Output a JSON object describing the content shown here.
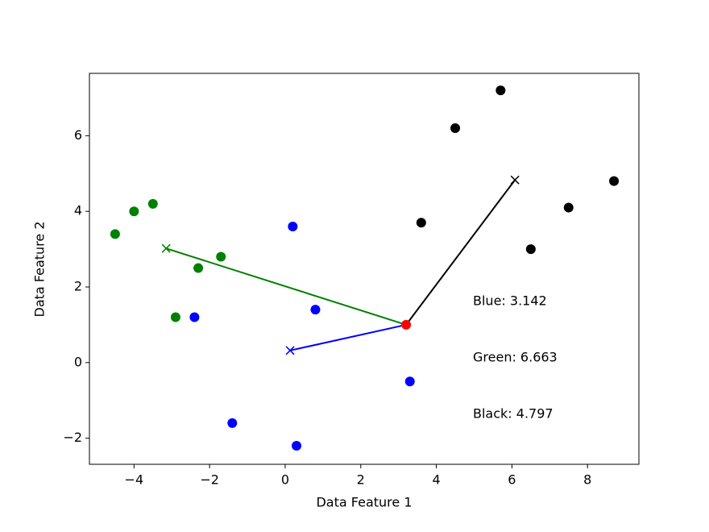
{
  "chart_data": {
    "type": "scatter",
    "xlabel": "Data Feature 1",
    "ylabel": "Data Feature 2",
    "xlim": [
      -5.18,
      9.36
    ],
    "ylim": [
      -2.69,
      7.65
    ],
    "xticks": [
      {
        "value": -4,
        "label": "−4"
      },
      {
        "value": -2,
        "label": "−2"
      },
      0,
      2,
      4,
      6,
      8
    ],
    "yticks": [
      {
        "value": -2,
        "label": "−2"
      },
      0,
      2,
      4,
      6
    ],
    "series": [
      {
        "color": "green",
        "x": [
          -4.5,
          -4.0,
          -3.5,
          -2.3,
          -1.7,
          -2.9
        ],
        "y": [
          3.4,
          4.0,
          4.2,
          2.5,
          2.8,
          1.2
        ]
      },
      {
        "color": "blue",
        "x": [
          0.2,
          0.8,
          -2.4,
          3.3,
          -1.4,
          0.3
        ],
        "y": [
          3.6,
          1.4,
          1.2,
          -0.5,
          -1.6,
          -2.2
        ]
      },
      {
        "color": "black",
        "x": [
          5.7,
          4.5,
          3.6,
          7.5,
          8.7,
          6.5
        ],
        "y": [
          7.2,
          6.2,
          3.7,
          4.1,
          4.8,
          3.0
        ]
      }
    ],
    "centroids": [
      {
        "color": "green",
        "x": -3.15,
        "y": 3.02
      },
      {
        "color": "blue",
        "x": 0.13,
        "y": 0.32
      },
      {
        "color": "black",
        "x": 6.08,
        "y": 4.83
      }
    ],
    "query": {
      "color": "red",
      "x": 3.2,
      "y": 1.0
    },
    "annotations": [
      "Blue: 3.142",
      "Green: 6.663",
      "Black: 4.797"
    ]
  }
}
